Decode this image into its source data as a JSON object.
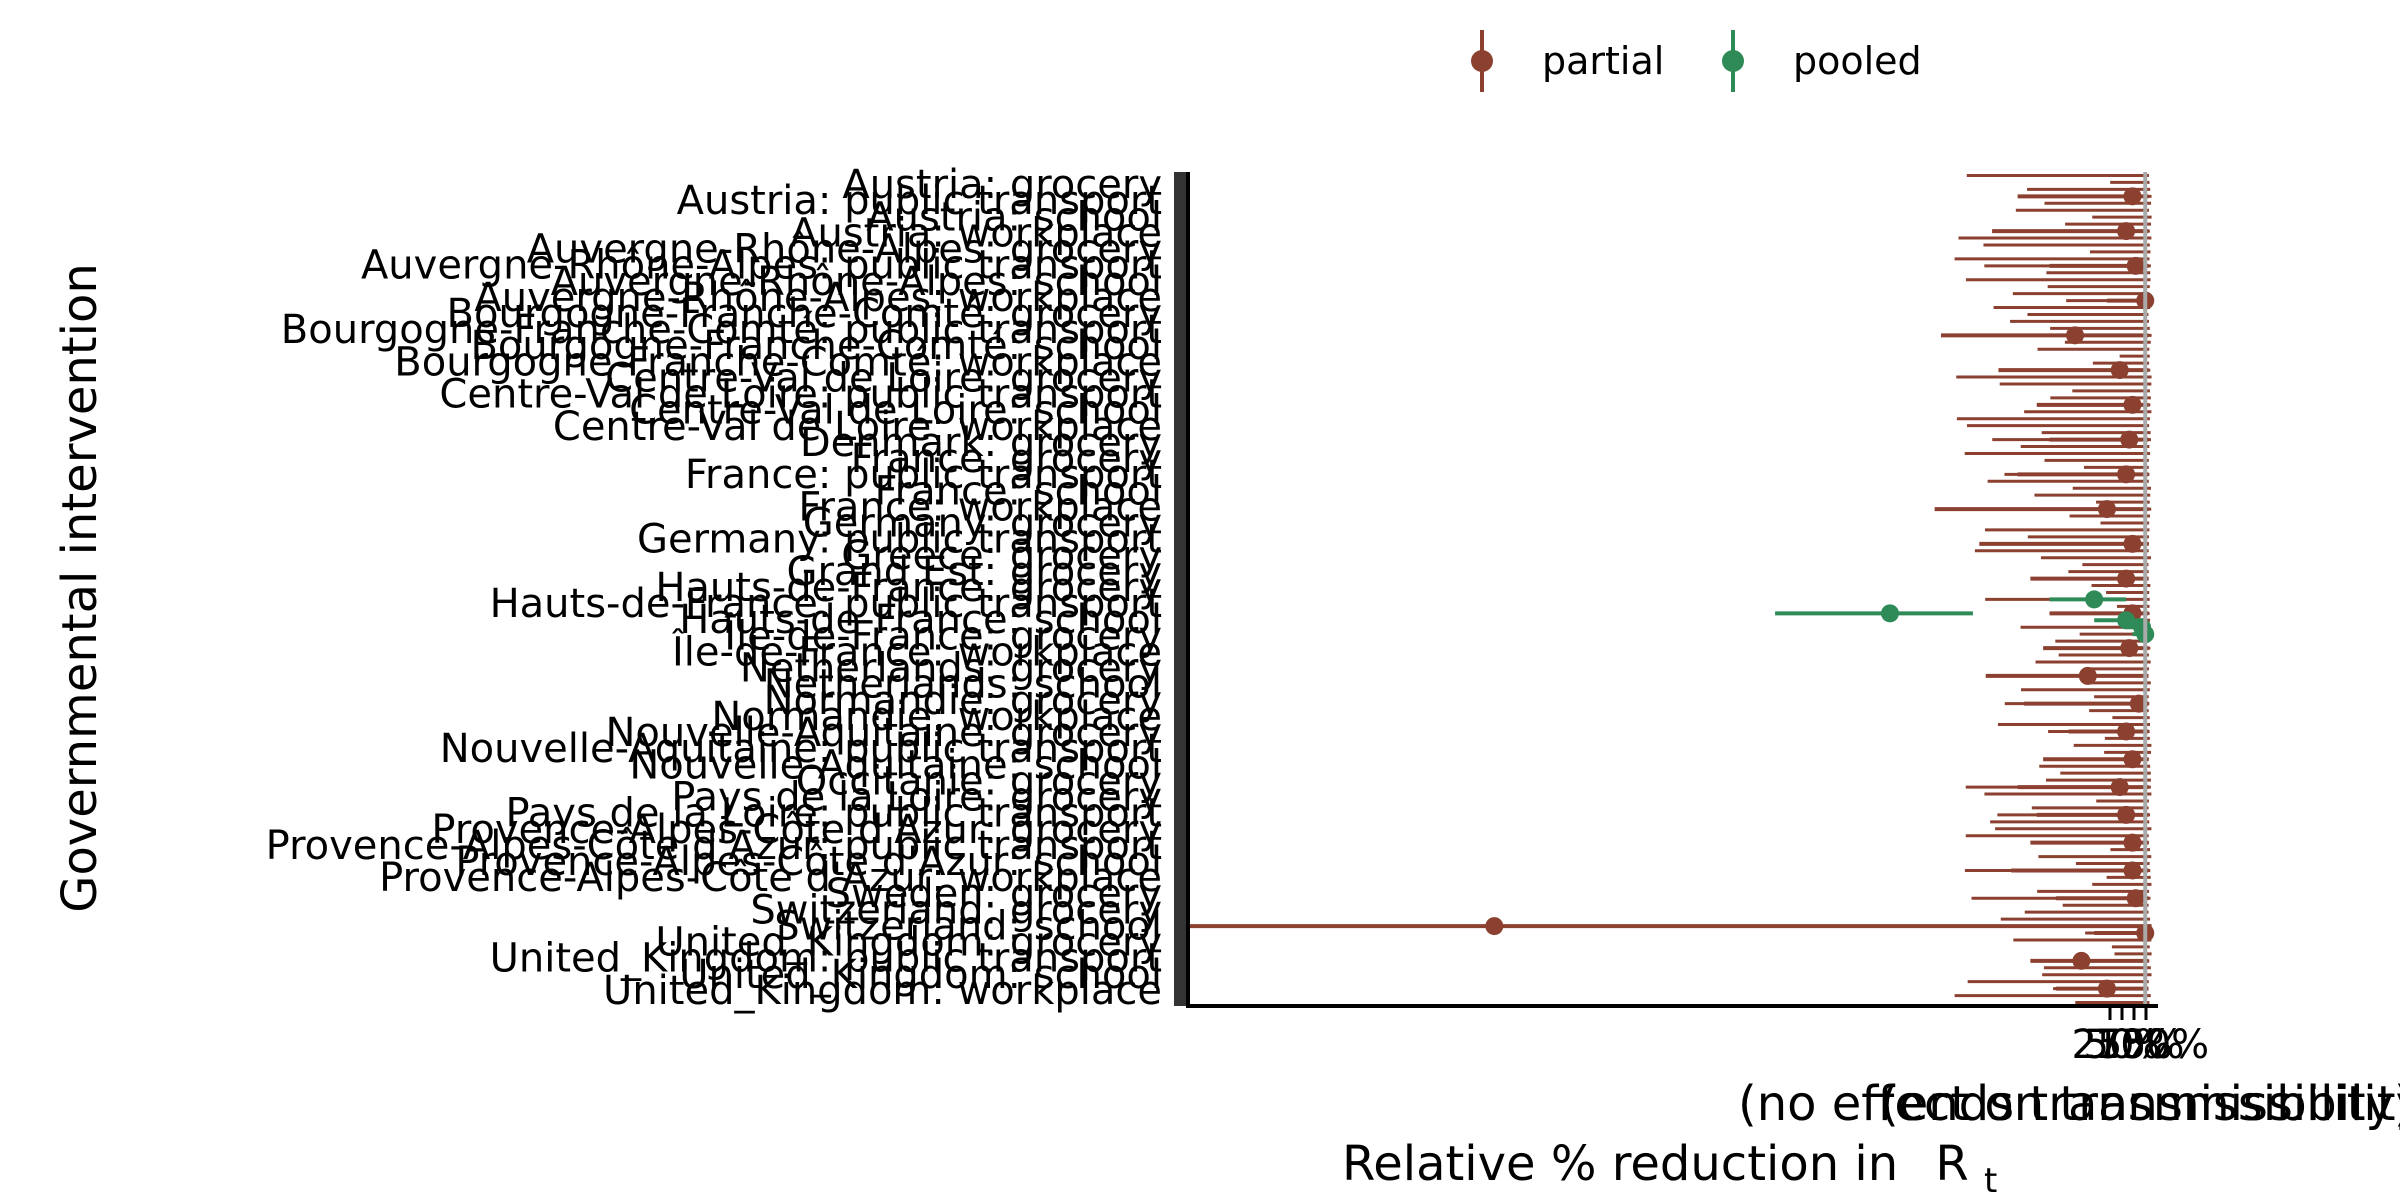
{
  "chart_data": {
    "type": "scatter",
    "subtype": "dot-and-interval",
    "ylabel": "Governmental intervention",
    "xlabel": "Relative % reduction in",
    "xlabel_symbol": "R",
    "xlabel_subscript": "t",
    "x_endpoint_labels": [
      "(no effect on transmissibility)",
      "(ends transmissibility)"
    ],
    "x_tick_labels": [
      "25%",
      "50%",
      "75%",
      "100%"
    ],
    "xlim": [
      -1500,
      20
    ],
    "x_scale": "percent reduction (0 at right reference line)",
    "reference_line_x": 0,
    "grid": false,
    "legend_position": "top",
    "legend": [
      {
        "name": "partial",
        "color": "#8B4030"
      },
      {
        "name": "pooled",
        "color": "#2E8B57"
      }
    ],
    "y_categories": [
      "Austria: grocery",
      "Austria: public transport",
      "Austria: school",
      "Austria: workplace",
      "Auvergne-Rhône-Alpes: grocery",
      "Auvergne-Rhône-Alpes: public transport",
      "Auvergne-Rhône-Alpes: school",
      "Auvergne-Rhône-Alpes: workplace",
      "Bourgogne-Franche-Comté: grocery",
      "Bourgogne-Franche-Comté: public transport",
      "Bourgogne-Franche-Comté: school",
      "Bourgogne-Franche-Comté: workplace",
      "Centre-Val de Loire: grocery",
      "Centre-Val de Loire: public transport",
      "Centre-Val de Loire: school",
      "Centre-Val de Loire: workplace",
      "Denmark: grocery",
      "France: grocery",
      "France: public transport",
      "France: school",
      "France: workplace",
      "Germany: grocery",
      "Germany: public transport",
      "Greece: grocery",
      "Grand Est: grocery",
      "Hauts-de-France: grocery",
      "Hauts-de-France: public transport",
      "Hauts-de-France: school",
      "Île-de-France: grocery",
      "Île-de-France: workplace",
      "Netherlands: grocery",
      "Netherlands: school",
      "Normandie: grocery",
      "Normandie: workplace",
      "Nouvelle-Aquitaine: grocery",
      "Nouvelle-Aquitaine: public transport",
      "Nouvelle-Aquitaine: school",
      "Occitanie: grocery",
      "Pays de la Loire: grocery",
      "Pays de la Loire: public transport",
      "Provence-Alpes-Côte d'Azur: grocery",
      "Provence-Alpes-Côte d'Azur: public transport",
      "Provence-Alpes-Côte d'Azur: school",
      "Provence-Alpes-Côte d'Azur: workplace",
      "Sweden: grocery",
      "Switzerland: grocery",
      "Switzerland: school",
      "United_Kingdom: grocery",
      "United_Kingdom: public transport",
      "United_Kingdom: school",
      "United_Kingdom: workplace"
    ],
    "row_count": 120,
    "series": [
      {
        "name": "partial",
        "color": "#8B4030",
        "points": [
          {
            "row": 3,
            "x": -20,
            "low": -200,
            "high": 5
          },
          {
            "row": 8,
            "x": -30,
            "low": -240,
            "high": 5
          },
          {
            "row": 13,
            "x": -15,
            "low": -150,
            "high": 5
          },
          {
            "row": 18,
            "x": 0,
            "low": -60,
            "high": 10
          },
          {
            "row": 23,
            "x": -110,
            "low": -320,
            "high": 5
          },
          {
            "row": 28,
            "x": -40,
            "low": -230,
            "high": 5
          },
          {
            "row": 33,
            "x": -20,
            "low": -170,
            "high": 5
          },
          {
            "row": 38,
            "x": -25,
            "low": -150,
            "high": 5
          },
          {
            "row": 43,
            "x": -30,
            "low": -200,
            "high": 5
          },
          {
            "row": 48,
            "x": -60,
            "low": -330,
            "high": 5
          },
          {
            "row": 53,
            "x": -20,
            "low": -260,
            "high": 5
          },
          {
            "row": 58,
            "x": -30,
            "low": -180,
            "high": 5
          },
          {
            "row": 63,
            "x": -20,
            "low": -150,
            "high": 5
          },
          {
            "row": 68,
            "x": -25,
            "low": -160,
            "high": 5
          },
          {
            "row": 72,
            "x": -90,
            "low": -250,
            "high": 5
          },
          {
            "row": 76,
            "x": -10,
            "low": -190,
            "high": 5
          },
          {
            "row": 80,
            "x": -30,
            "low": -120,
            "high": 5
          },
          {
            "row": 84,
            "x": -20,
            "low": -160,
            "high": 5
          },
          {
            "row": 88,
            "x": -40,
            "low": -200,
            "high": 5
          },
          {
            "row": 92,
            "x": -30,
            "low": -170,
            "high": 5
          },
          {
            "row": 96,
            "x": -20,
            "low": -180,
            "high": 5
          },
          {
            "row": 100,
            "x": -20,
            "low": -210,
            "high": 5
          },
          {
            "row": 104,
            "x": -15,
            "low": -140,
            "high": 5
          },
          {
            "row": 108,
            "x": -1020,
            "low": -1500,
            "high": 10
          },
          {
            "row": 109,
            "x": 0,
            "low": -80,
            "high": 10
          },
          {
            "row": 113,
            "x": -100,
            "low": -180,
            "high": 5
          },
          {
            "row": 117,
            "x": -60,
            "low": -140,
            "high": 5
          }
        ]
      },
      {
        "name": "pooled",
        "color": "#2E8B57",
        "points": [
          {
            "row": 61,
            "x": -80,
            "low": -150,
            "high": -30
          },
          {
            "row": 63,
            "x": -400,
            "low": -580,
            "high": -270
          },
          {
            "row": 64,
            "x": -30,
            "low": -80,
            "high": 0
          },
          {
            "row": 65,
            "x": -5,
            "low": -30,
            "high": 5
          },
          {
            "row": 66,
            "x": 0,
            "low": -20,
            "high": 5
          }
        ]
      }
    ]
  }
}
